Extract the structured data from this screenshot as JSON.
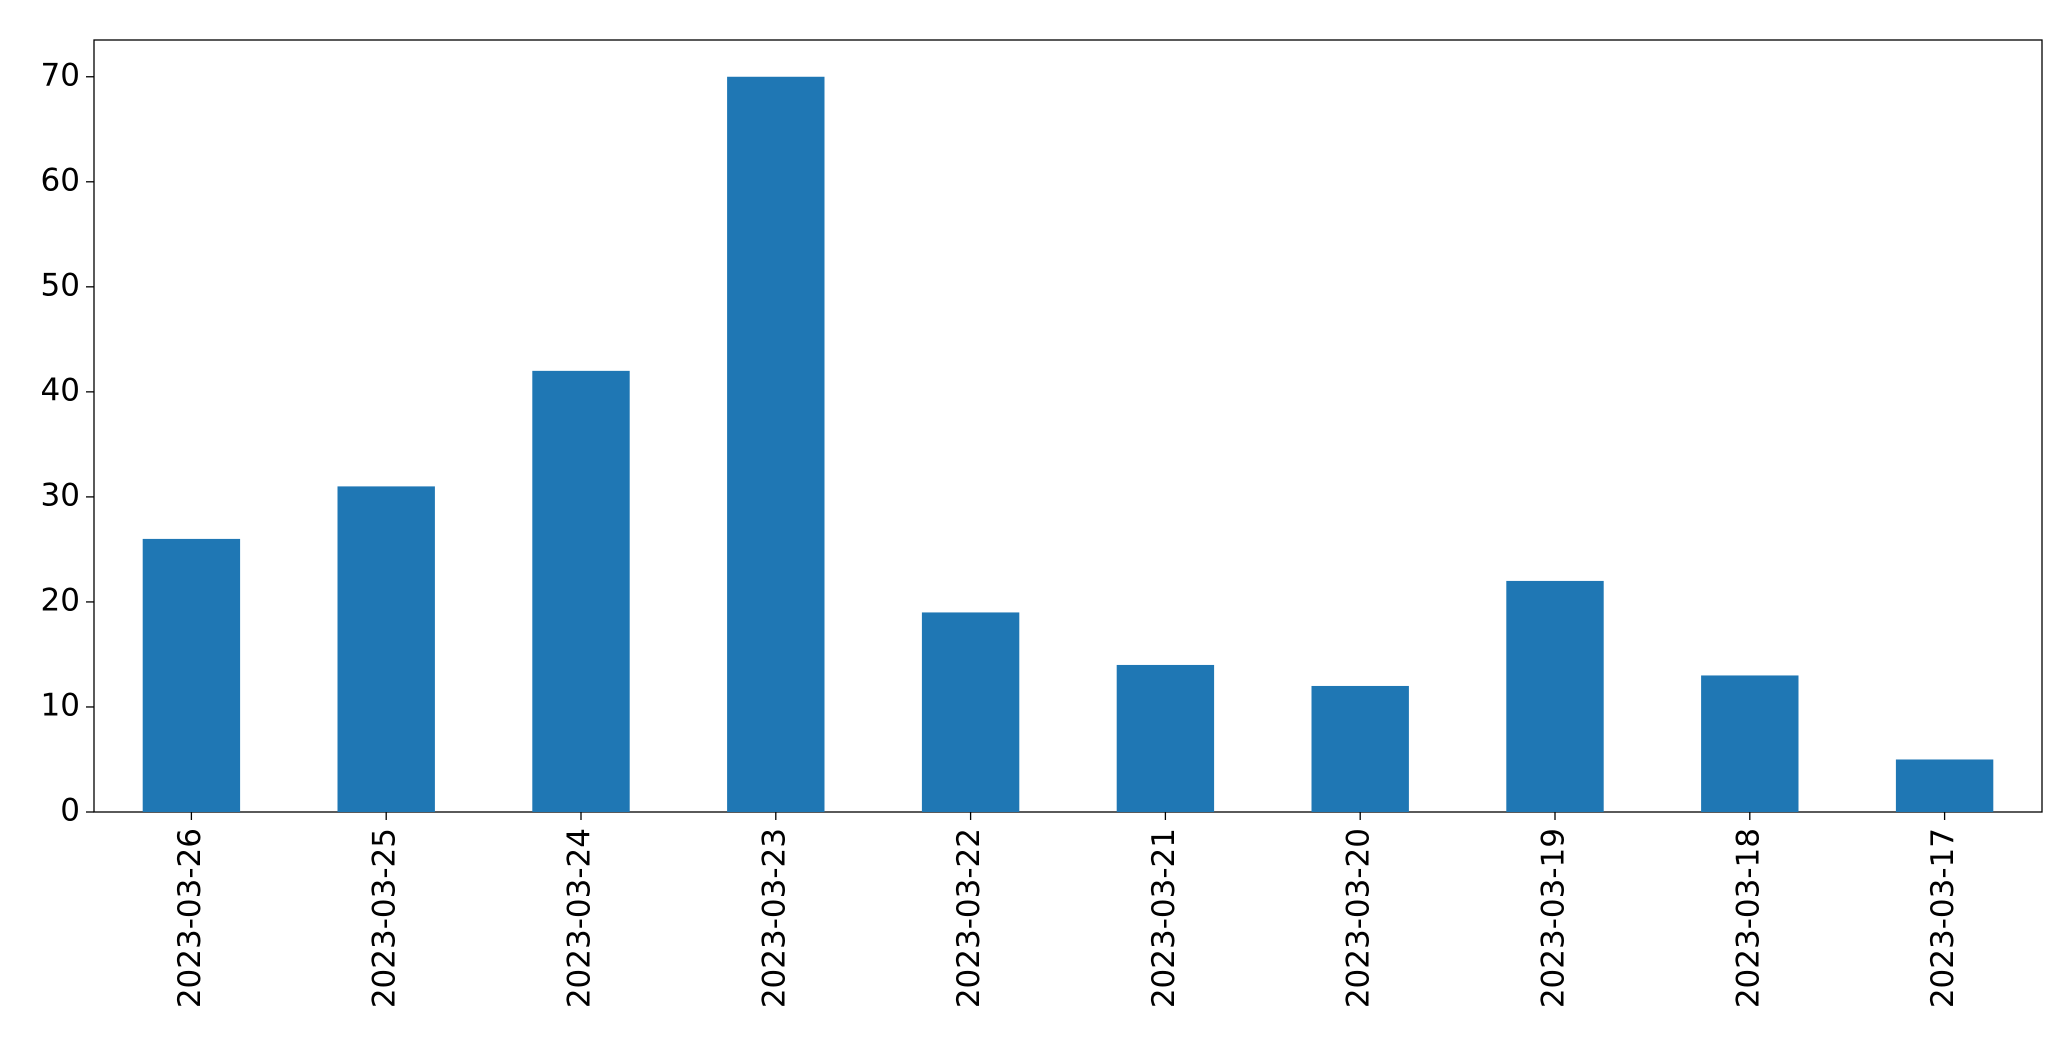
{
  "chart_data": {
    "type": "bar",
    "categories": [
      "2023-03-26",
      "2023-03-25",
      "2023-03-24",
      "2023-03-23",
      "2023-03-22",
      "2023-03-21",
      "2023-03-20",
      "2023-03-19",
      "2023-03-18",
      "2023-03-17"
    ],
    "values": [
      26,
      31,
      42,
      70,
      19,
      14,
      12,
      22,
      13,
      5
    ],
    "color": "#1f77b4",
    "ylim": [
      0,
      73.5
    ],
    "yticks": [
      0,
      10,
      20,
      30,
      40,
      50,
      60,
      70
    ],
    "grid": false
  }
}
